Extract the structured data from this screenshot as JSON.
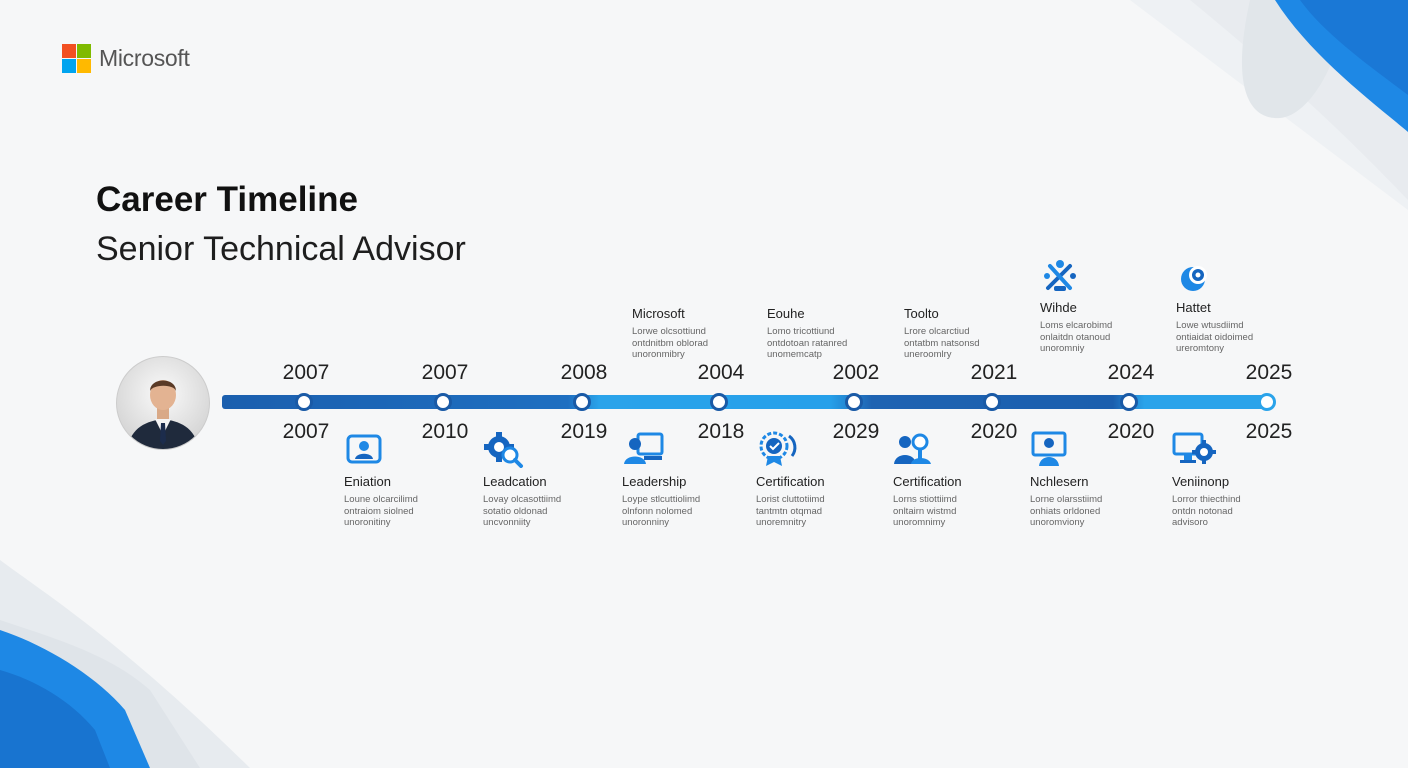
{
  "brand": {
    "name": "Microsoft",
    "colors": [
      "#f25022",
      "#7fba00",
      "#00a4ef",
      "#ffb900"
    ]
  },
  "title": "Career Timeline",
  "subtitle": "Senior Technical Advisor",
  "accent": {
    "dark": "#1b5fae",
    "light": "#2aa3ea"
  },
  "timeline": {
    "nodes": [
      {
        "top_year": "2007",
        "bottom_year": "2007"
      },
      {
        "top_year": "2007",
        "bottom_year": "2010"
      },
      {
        "top_year": "2008",
        "bottom_year": "2019"
      },
      {
        "top_year": "2004",
        "bottom_year": "2018"
      },
      {
        "top_year": "2002",
        "bottom_year": "2029"
      },
      {
        "top_year": "2021",
        "bottom_year": "2020"
      },
      {
        "top_year": "2024",
        "bottom_year": "2020"
      },
      {
        "top_year": "2025",
        "bottom_year": "2025"
      }
    ],
    "top_cards": [
      {
        "title": "Microsoft",
        "desc": "Lorwe olcsottiund\nontdnitbm oblorad\nunoronmibry"
      },
      {
        "title": "Eouhe",
        "desc": "Lomo tricottiund\nontdotoan ratanred\nunomemcatp"
      },
      {
        "title": "Toolto",
        "desc": "Lrore olcarctiud\nontatbm natsonsd\nuneroomlry"
      },
      {
        "title": "Wihde",
        "icon": "tools-icon",
        "desc": "Loms elcarobimd\nonlaitdn otanoud\nunoromniy"
      },
      {
        "title": "Hattet",
        "icon": "target-icon",
        "desc": "Lowe wtusdiimd\nontiaidat oidoimed\nureromtony"
      }
    ],
    "bottom_cards": [
      {
        "title": "Eniation",
        "icon": "profile-card-icon",
        "desc": "Loune olcarcilimd\nontraiom siolned\nunoronitiny"
      },
      {
        "title": "Leadcation",
        "icon": "gear-search-icon",
        "desc": "Lovay olcasottiimd\nsotatio oldonad\nuncvonniity"
      },
      {
        "title": "Leadership",
        "icon": "user-presentation-icon",
        "desc": "Loype stlcuttiolimd\nolnfonn nolomed\nunoronniny"
      },
      {
        "title": "Certification",
        "icon": "certificate-gear-icon",
        "desc": "Lorist cluttotiimd\ntantmtn otqmad\nunoremnitry"
      },
      {
        "title": "Certification",
        "icon": "team-search-icon",
        "desc": "Lorns stiottiimd\nonltairn wistmd\nunoromnimy"
      },
      {
        "title": "Nchlesern",
        "icon": "user-screen-icon",
        "desc": "Lorne olarsstiimd\nonhiats orldoned\nunoromviony"
      },
      {
        "title": "Veniinonp",
        "icon": "monitor-gear-icon",
        "desc": "Lorror thiecthind\nontdn notonad\nadvisoro"
      }
    ]
  }
}
